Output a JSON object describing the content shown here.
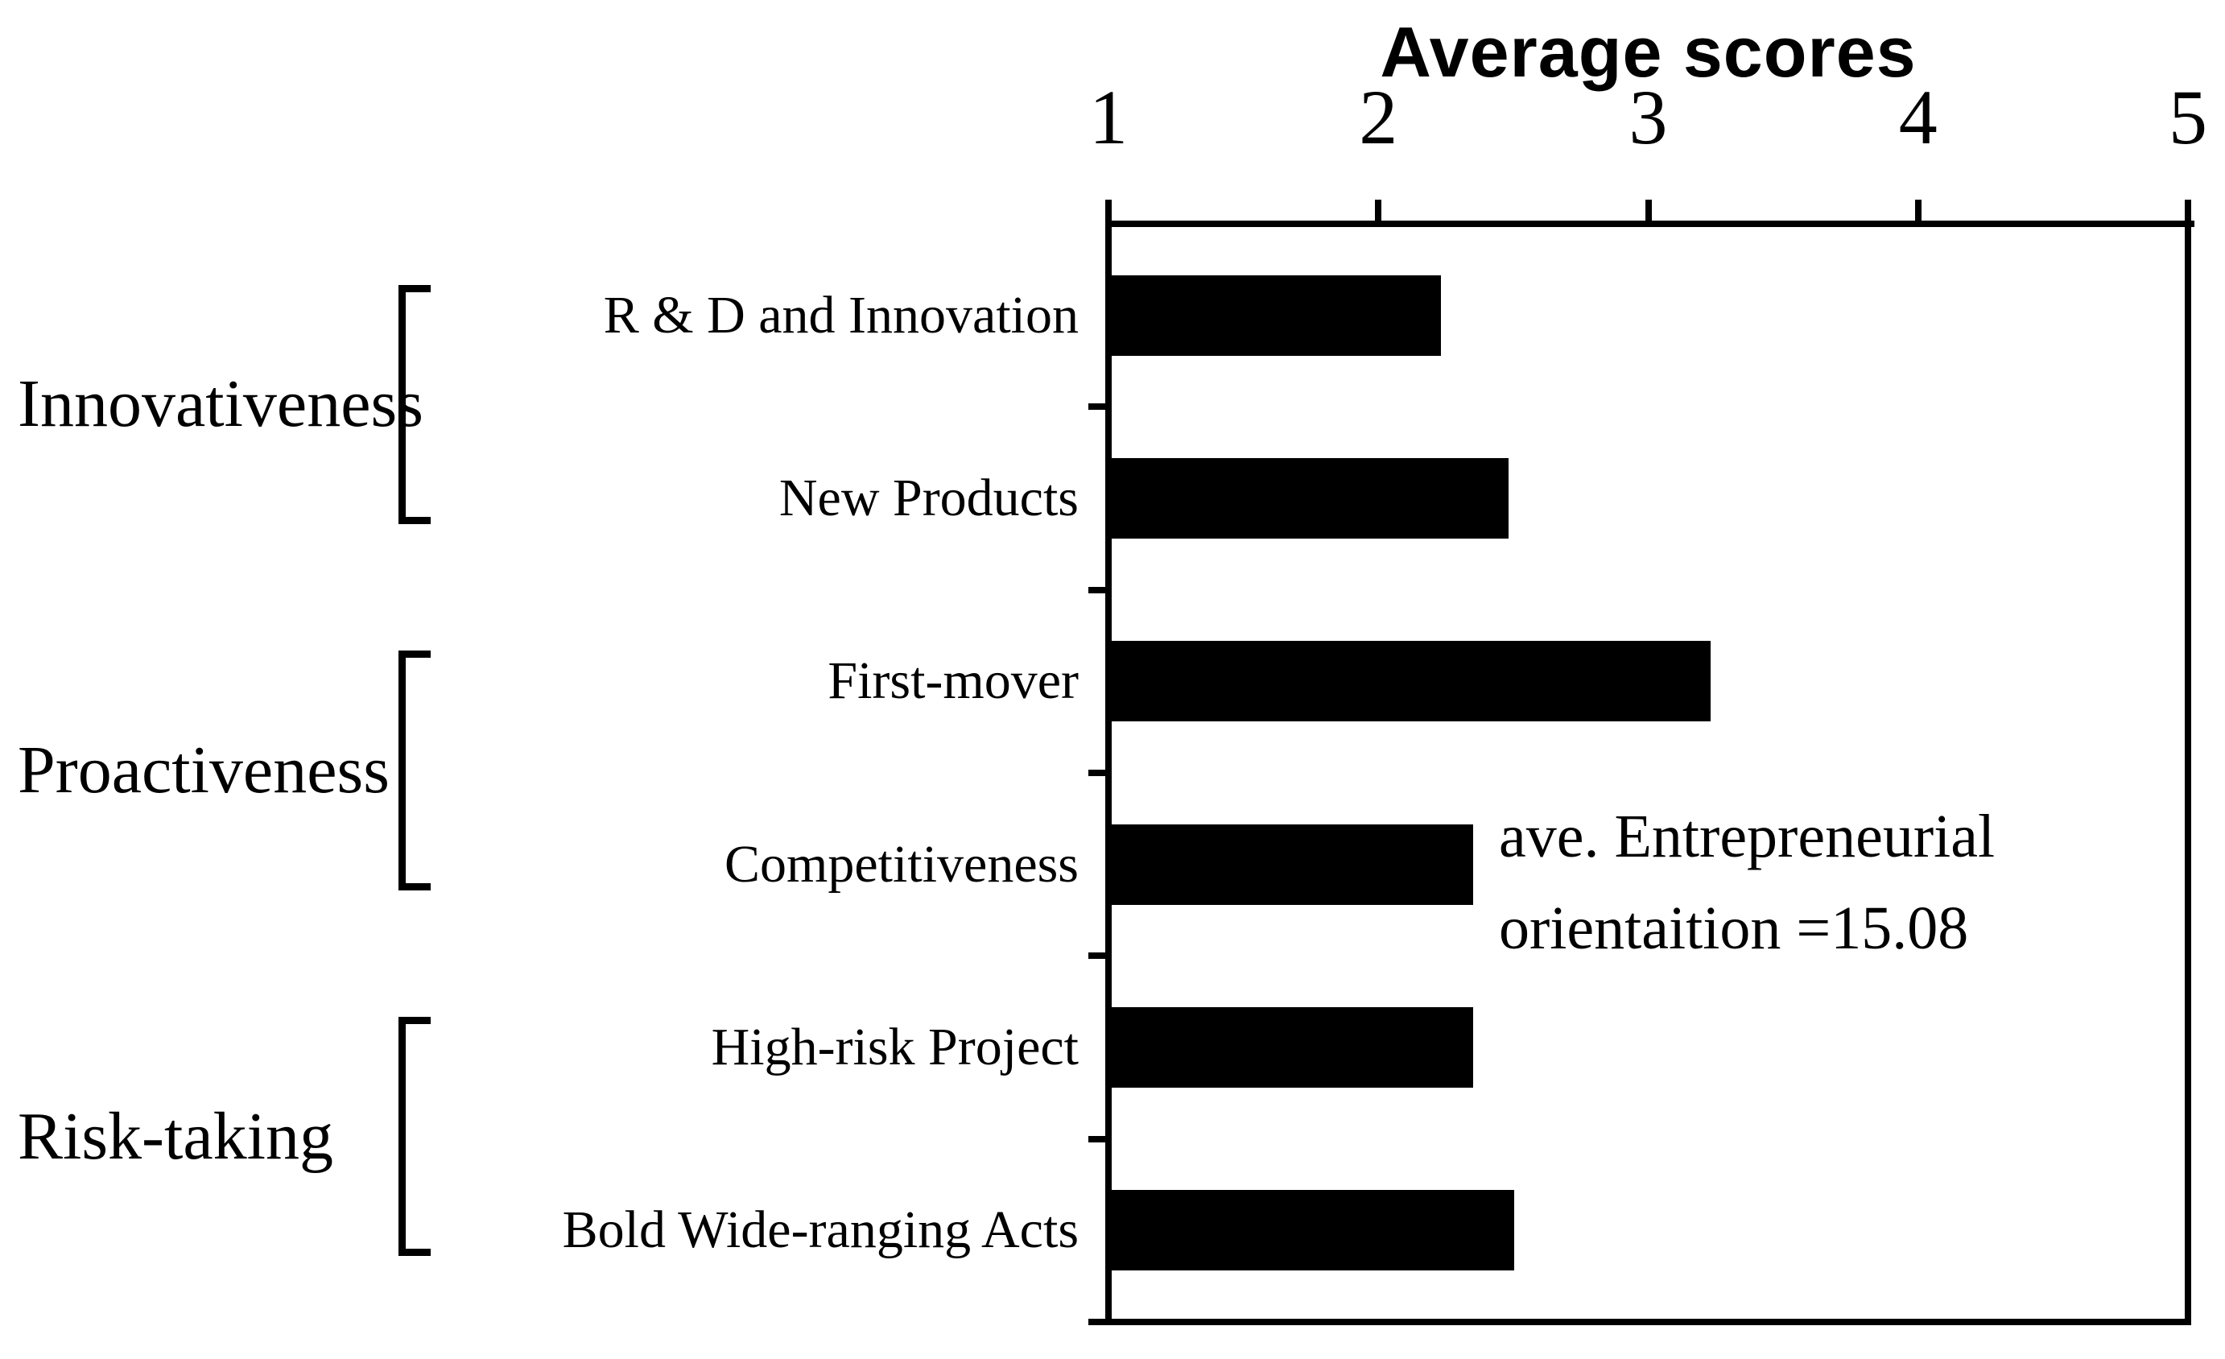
{
  "title": "Average scores",
  "annotation": {
    "line1": "ave. Entrepreneurial",
    "line2": "orientaition =15.08",
    "full_text": "ave. Entrepreneurial orientaition =15.08"
  },
  "chart_data": {
    "type": "bar",
    "orientation": "horizontal",
    "title": "Average scores",
    "x_axis": {
      "position": "top",
      "ticks": [
        1,
        2,
        3,
        4,
        5
      ],
      "range": [
        1,
        5
      ],
      "grid": false
    },
    "categories": [
      "R & D and Innovation",
      "New Products",
      "First-mover",
      "Competitiveness",
      "High-risk Project",
      "Bold Wide-ranging Acts"
    ],
    "values": [
      2.22,
      2.47,
      3.22,
      2.34,
      2.34,
      2.49
    ],
    "groups": [
      {
        "label": "Innovativeness",
        "from": 0,
        "to": 1
      },
      {
        "label": "Proactiveness",
        "from": 2,
        "to": 3
      },
      {
        "label": "Risk-taking",
        "from": 4,
        "to": 5
      }
    ],
    "bar_color": "#000000",
    "background_color": "#ffffff",
    "annotation": "ave. Entrepreneurial orientaition =15.08"
  }
}
